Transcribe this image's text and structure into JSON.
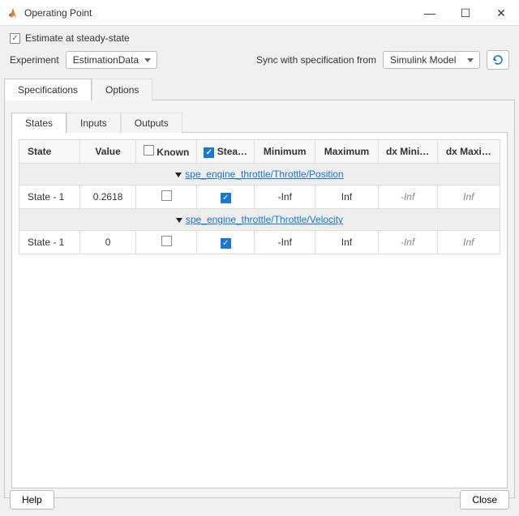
{
  "title": "Operating Point",
  "steady_checkbox": {
    "label": "Estimate at steady-state",
    "checked": true
  },
  "experiment": {
    "label": "Experiment",
    "value": "EstimationData"
  },
  "sync": {
    "label": "Sync with specification from",
    "value": "Simulink Model"
  },
  "outer_tabs": {
    "specifications": "Specifications",
    "options": "Options"
  },
  "inner_tabs": {
    "states": "States",
    "inputs": "Inputs",
    "outputs": "Outputs"
  },
  "columns": {
    "state": "State",
    "value": "Value",
    "known": "Known",
    "steady": "Stea…",
    "minimum": "Minimum",
    "maximum": "Maximum",
    "dxmin": "dx Mini…",
    "dxmax": "dx Maxi…"
  },
  "groups": [
    {
      "path": "spe_engine_throttle/Throttle/Position",
      "rows": [
        {
          "state": "State - 1",
          "value": "0.2618",
          "known": false,
          "steady": true,
          "min": "-Inf",
          "max": "Inf",
          "dxmin": "-Inf",
          "dxmax": "Inf"
        }
      ]
    },
    {
      "path": "spe_engine_throttle/Throttle/Velocity",
      "rows": [
        {
          "state": "State - 1",
          "value": "0",
          "known": false,
          "steady": true,
          "min": "-Inf",
          "max": "Inf",
          "dxmin": "-Inf",
          "dxmax": "Inf"
        }
      ]
    }
  ],
  "buttons": {
    "help": "Help",
    "close": "Close"
  },
  "colors": {
    "accent": "#1976d2"
  }
}
